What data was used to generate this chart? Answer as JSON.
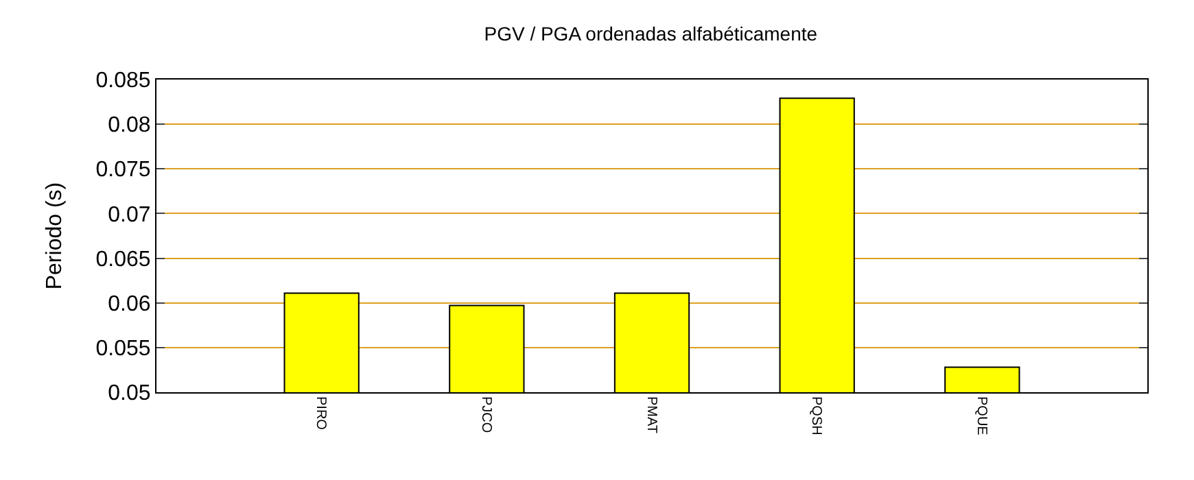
{
  "chart_data": {
    "type": "bar",
    "title": "PGV / PGA ordenadas alfabéticamente",
    "ylabel": "Periodo (s)",
    "categories": [
      "PIRO",
      "PJCO",
      "PMAT",
      "PQSH",
      "PQUE"
    ],
    "values": [
      0.0611,
      0.0597,
      0.0611,
      0.0829,
      0.0528
    ],
    "color": "#ffff00",
    "ylim": [
      0.05,
      0.085
    ],
    "yticks": [
      0.05,
      0.055,
      0.06,
      0.065,
      0.07,
      0.075,
      0.08,
      0.085
    ],
    "grid": "y"
  }
}
